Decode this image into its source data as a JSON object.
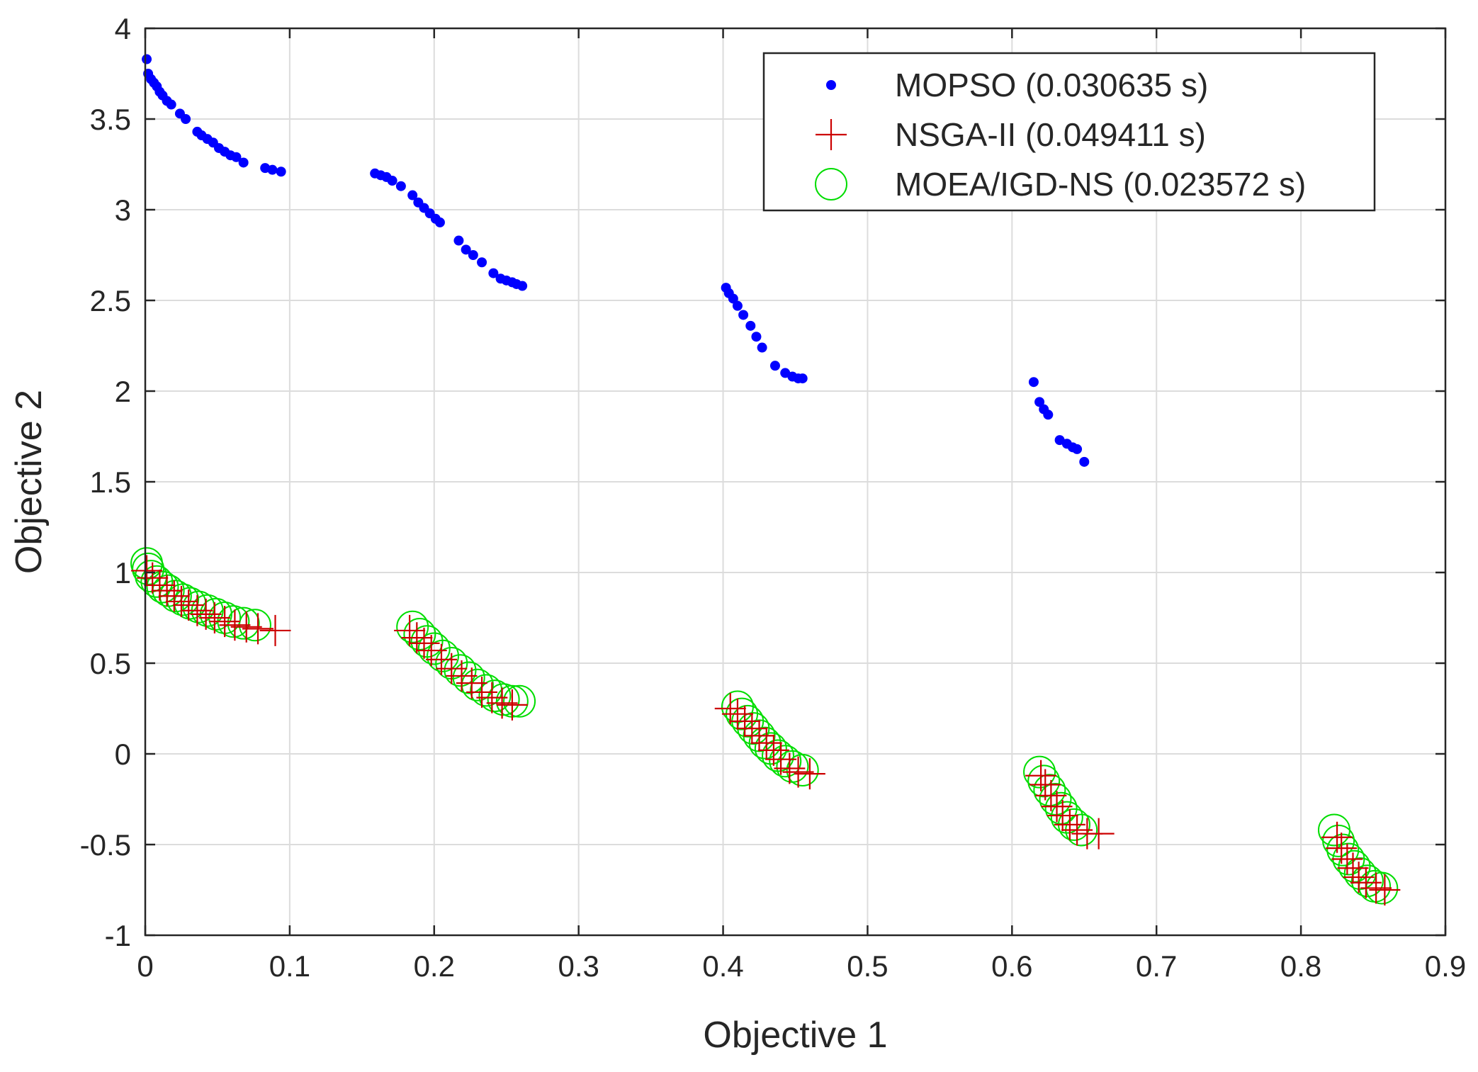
{
  "chart_data": {
    "type": "scatter",
    "title": "",
    "xlabel": "Objective 1",
    "ylabel": "Objective 2",
    "xlim": [
      0,
      0.9
    ],
    "ylim": [
      -1,
      4
    ],
    "grid": true,
    "legend_position": "top-right",
    "x_ticks": [
      "0",
      "0.1",
      "0.2",
      "0.3",
      "0.4",
      "0.5",
      "0.6",
      "0.7",
      "0.8",
      "0.9"
    ],
    "y_ticks": [
      "-1",
      "-0.5",
      "0",
      "0.5",
      "1",
      "1.5",
      "2",
      "2.5",
      "3",
      "3.5",
      "4"
    ],
    "series": [
      {
        "name": "MOPSO (0.030635 s)",
        "marker": "dot",
        "color": "#0000ff",
        "points": [
          [
            0.001,
            3.83
          ],
          [
            0.002,
            3.75
          ],
          [
            0.004,
            3.72
          ],
          [
            0.006,
            3.7
          ],
          [
            0.008,
            3.68
          ],
          [
            0.01,
            3.65
          ],
          [
            0.012,
            3.63
          ],
          [
            0.015,
            3.6
          ],
          [
            0.018,
            3.58
          ],
          [
            0.024,
            3.53
          ],
          [
            0.028,
            3.5
          ],
          [
            0.036,
            3.43
          ],
          [
            0.039,
            3.41
          ],
          [
            0.043,
            3.39
          ],
          [
            0.047,
            3.37
          ],
          [
            0.051,
            3.34
          ],
          [
            0.055,
            3.32
          ],
          [
            0.059,
            3.3
          ],
          [
            0.063,
            3.29
          ],
          [
            0.068,
            3.26
          ],
          [
            0.083,
            3.23
          ],
          [
            0.088,
            3.22
          ],
          [
            0.094,
            3.21
          ],
          [
            0.159,
            3.2
          ],
          [
            0.163,
            3.19
          ],
          [
            0.167,
            3.18
          ],
          [
            0.171,
            3.16
          ],
          [
            0.177,
            3.13
          ],
          [
            0.185,
            3.08
          ],
          [
            0.189,
            3.04
          ],
          [
            0.193,
            3.01
          ],
          [
            0.197,
            2.98
          ],
          [
            0.201,
            2.95
          ],
          [
            0.204,
            2.93
          ],
          [
            0.217,
            2.83
          ],
          [
            0.222,
            2.78
          ],
          [
            0.227,
            2.75
          ],
          [
            0.233,
            2.71
          ],
          [
            0.241,
            2.65
          ],
          [
            0.246,
            2.62
          ],
          [
            0.25,
            2.61
          ],
          [
            0.254,
            2.6
          ],
          [
            0.257,
            2.59
          ],
          [
            0.261,
            2.58
          ],
          [
            0.402,
            2.57
          ],
          [
            0.404,
            2.54
          ],
          [
            0.407,
            2.51
          ],
          [
            0.41,
            2.47
          ],
          [
            0.414,
            2.42
          ],
          [
            0.419,
            2.36
          ],
          [
            0.423,
            2.3
          ],
          [
            0.427,
            2.24
          ],
          [
            0.436,
            2.14
          ],
          [
            0.443,
            2.1
          ],
          [
            0.448,
            2.08
          ],
          [
            0.452,
            2.07
          ],
          [
            0.455,
            2.07
          ],
          [
            0.615,
            2.05
          ],
          [
            0.619,
            1.94
          ],
          [
            0.622,
            1.9
          ],
          [
            0.625,
            1.87
          ],
          [
            0.633,
            1.73
          ],
          [
            0.638,
            1.71
          ],
          [
            0.642,
            1.69
          ],
          [
            0.645,
            1.68
          ],
          [
            0.65,
            1.61
          ]
        ]
      },
      {
        "name": "NSGA-II (0.049411 s)",
        "marker": "plus",
        "color": "#cc0000",
        "points": [
          [
            0.001,
            1.01
          ],
          [
            0.005,
            0.97
          ],
          [
            0.01,
            0.93
          ],
          [
            0.015,
            0.9
          ],
          [
            0.02,
            0.87
          ],
          [
            0.025,
            0.84
          ],
          [
            0.03,
            0.82
          ],
          [
            0.036,
            0.79
          ],
          [
            0.042,
            0.77
          ],
          [
            0.048,
            0.75
          ],
          [
            0.055,
            0.73
          ],
          [
            0.062,
            0.71
          ],
          [
            0.07,
            0.7
          ],
          [
            0.078,
            0.69
          ],
          [
            0.09,
            0.68
          ],
          [
            0.183,
            0.68
          ],
          [
            0.188,
            0.64
          ],
          [
            0.193,
            0.61
          ],
          [
            0.198,
            0.57
          ],
          [
            0.205,
            0.52
          ],
          [
            0.212,
            0.47
          ],
          [
            0.219,
            0.43
          ],
          [
            0.226,
            0.39
          ],
          [
            0.233,
            0.34
          ],
          [
            0.24,
            0.31
          ],
          [
            0.247,
            0.28
          ],
          [
            0.254,
            0.27
          ],
          [
            0.405,
            0.25
          ],
          [
            0.41,
            0.22
          ],
          [
            0.415,
            0.18
          ],
          [
            0.42,
            0.14
          ],
          [
            0.425,
            0.1
          ],
          [
            0.43,
            0.06
          ],
          [
            0.435,
            0.02
          ],
          [
            0.44,
            -0.03
          ],
          [
            0.446,
            -0.08
          ],
          [
            0.452,
            -0.1
          ],
          [
            0.46,
            -0.11
          ],
          [
            0.62,
            -0.12
          ],
          [
            0.623,
            -0.17
          ],
          [
            0.627,
            -0.23
          ],
          [
            0.631,
            -0.29
          ],
          [
            0.635,
            -0.34
          ],
          [
            0.64,
            -0.39
          ],
          [
            0.645,
            -0.42
          ],
          [
            0.652,
            -0.44
          ],
          [
            0.66,
            -0.44
          ],
          [
            0.825,
            -0.46
          ],
          [
            0.828,
            -0.52
          ],
          [
            0.832,
            -0.58
          ],
          [
            0.836,
            -0.63
          ],
          [
            0.84,
            -0.68
          ],
          [
            0.845,
            -0.71
          ],
          [
            0.852,
            -0.74
          ],
          [
            0.858,
            -0.75
          ]
        ]
      },
      {
        "name": "MOEA/IGD-NS (0.023572 s)",
        "marker": "circle",
        "color": "#00dd00",
        "points": [
          [
            0.001,
            1.05
          ],
          [
            0.002,
            1.02
          ],
          [
            0.004,
            0.98
          ],
          [
            0.008,
            0.95
          ],
          [
            0.012,
            0.92
          ],
          [
            0.016,
            0.9
          ],
          [
            0.021,
            0.87
          ],
          [
            0.026,
            0.85
          ],
          [
            0.031,
            0.83
          ],
          [
            0.037,
            0.81
          ],
          [
            0.043,
            0.79
          ],
          [
            0.049,
            0.77
          ],
          [
            0.055,
            0.75
          ],
          [
            0.061,
            0.73
          ],
          [
            0.068,
            0.72
          ],
          [
            0.076,
            0.71
          ],
          [
            0.185,
            0.7
          ],
          [
            0.19,
            0.66
          ],
          [
            0.195,
            0.62
          ],
          [
            0.2,
            0.58
          ],
          [
            0.206,
            0.54
          ],
          [
            0.212,
            0.5
          ],
          [
            0.218,
            0.46
          ],
          [
            0.224,
            0.42
          ],
          [
            0.23,
            0.38
          ],
          [
            0.236,
            0.35
          ],
          [
            0.242,
            0.32
          ],
          [
            0.248,
            0.3
          ],
          [
            0.254,
            0.29
          ],
          [
            0.259,
            0.29
          ],
          [
            0.41,
            0.26
          ],
          [
            0.413,
            0.22
          ],
          [
            0.417,
            0.18
          ],
          [
            0.421,
            0.14
          ],
          [
            0.425,
            0.1
          ],
          [
            0.429,
            0.06
          ],
          [
            0.433,
            0.03
          ],
          [
            0.438,
            -0.01
          ],
          [
            0.443,
            -0.04
          ],
          [
            0.448,
            -0.07
          ],
          [
            0.455,
            -0.09
          ],
          [
            0.619,
            -0.1
          ],
          [
            0.622,
            -0.15
          ],
          [
            0.626,
            -0.2
          ],
          [
            0.63,
            -0.25
          ],
          [
            0.634,
            -0.3
          ],
          [
            0.638,
            -0.35
          ],
          [
            0.643,
            -0.39
          ],
          [
            0.648,
            -0.42
          ],
          [
            0.823,
            -0.42
          ],
          [
            0.826,
            -0.48
          ],
          [
            0.829,
            -0.53
          ],
          [
            0.833,
            -0.58
          ],
          [
            0.837,
            -0.62
          ],
          [
            0.841,
            -0.66
          ],
          [
            0.846,
            -0.7
          ],
          [
            0.851,
            -0.73
          ],
          [
            0.856,
            -0.74
          ]
        ]
      }
    ]
  }
}
